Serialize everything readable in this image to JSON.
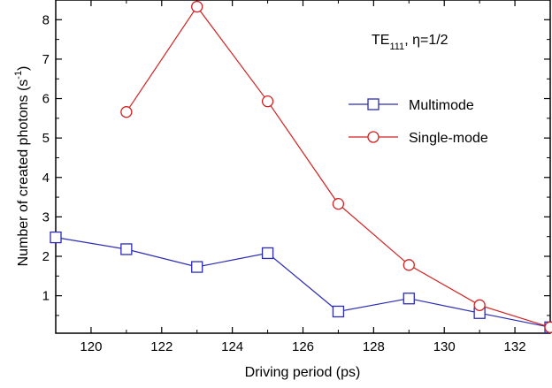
{
  "chart_data": {
    "type": "line",
    "title": "",
    "xlabel": "Driving period (ps)",
    "ylabel": "Number of created photons (s",
    "ylabel_sup": "-1",
    "ylabel_suffix": ")",
    "annotation": {
      "main": "TE",
      "sub": "111",
      "rest": ", η=1/2"
    },
    "xlim": [
      119,
      133
    ],
    "ylim": [
      0.05,
      8.5
    ],
    "xticks": [
      120,
      122,
      124,
      126,
      128,
      130,
      132
    ],
    "yticks": [
      1,
      2,
      3,
      4,
      5,
      6,
      7,
      8
    ],
    "legend_position": "right",
    "grid": false,
    "series": [
      {
        "name": "Multimode",
        "color": "#2b2bb5",
        "marker": "square",
        "x": [
          119,
          121,
          123,
          125,
          127,
          129,
          131,
          133
        ],
        "y": [
          2.48,
          2.18,
          1.73,
          2.08,
          0.6,
          0.93,
          0.56,
          0.2
        ]
      },
      {
        "name": "Single-mode",
        "color": "#d42020",
        "marker": "circle",
        "x": [
          121,
          123,
          125,
          127,
          129,
          131,
          133
        ],
        "y": [
          5.66,
          8.33,
          5.93,
          3.33,
          1.78,
          0.76,
          0.2
        ]
      }
    ]
  }
}
